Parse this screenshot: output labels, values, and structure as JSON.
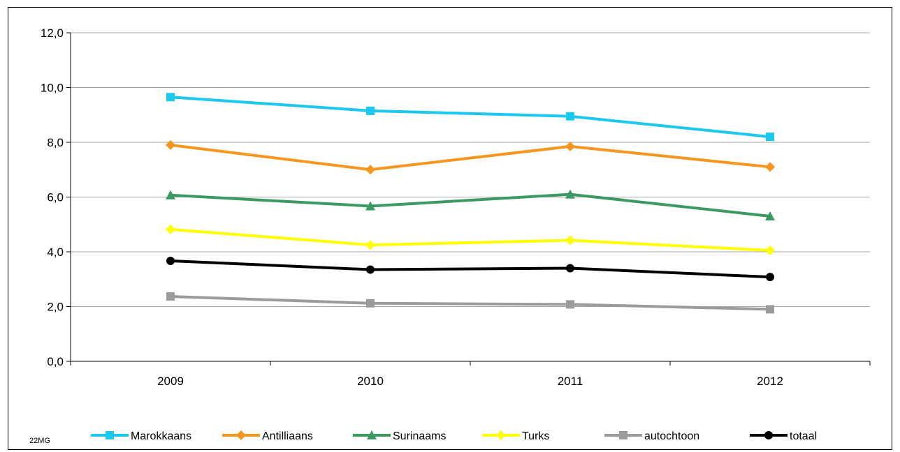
{
  "chart_data": {
    "type": "line",
    "title": "",
    "xlabel": "",
    "ylabel": "",
    "categories": [
      "2009",
      "2010",
      "2011",
      "2012"
    ],
    "ylim": [
      0,
      12
    ],
    "yticks": [
      0,
      2,
      4,
      6,
      8,
      10,
      12
    ],
    "ytick_labels": [
      "0,0",
      "2,0",
      "4,0",
      "6,0",
      "8,0",
      "10,0",
      "12,0"
    ],
    "grid": true,
    "legend_position": "bottom",
    "series": [
      {
        "name": "Marokkaans",
        "color": "#1CC8F0",
        "marker": "square",
        "values": [
          9.65,
          9.15,
          8.95,
          8.2
        ]
      },
      {
        "name": "Antilliaans",
        "color": "#F7961F",
        "marker": "diamond",
        "values": [
          7.9,
          7.0,
          7.85,
          7.1
        ]
      },
      {
        "name": "Surinaams",
        "color": "#3A9A62",
        "marker": "triangle",
        "values": [
          6.07,
          5.67,
          6.1,
          5.3
        ]
      },
      {
        "name": "Turks",
        "color": "#FFFF00",
        "marker": "diamond",
        "values": [
          4.82,
          4.25,
          4.42,
          4.05
        ]
      },
      {
        "name": "autochtoon",
        "color": "#9B9B9B",
        "marker": "square",
        "values": [
          2.37,
          2.12,
          2.08,
          1.9
        ]
      },
      {
        "name": "totaal",
        "color": "#000000",
        "marker": "circle",
        "values": [
          3.67,
          3.35,
          3.4,
          3.08
        ]
      }
    ],
    "source_note": "22MG"
  }
}
